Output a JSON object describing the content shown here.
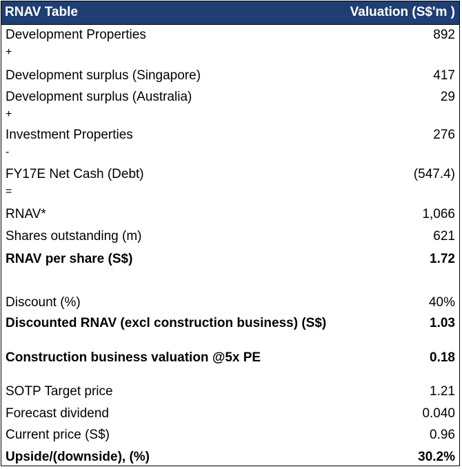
{
  "table": {
    "title": "RNAV Table",
    "value_header": "Valuation (S$'m )",
    "rows": [
      {
        "label": "Development Properties",
        "value": "892",
        "bold": false
      },
      {
        "label": "+",
        "value": "",
        "bold": false,
        "op": true
      },
      {
        "label": "Development surplus (Singapore)",
        "value": "417",
        "bold": false
      },
      {
        "label": "Development surplus (Australia)",
        "value": "29",
        "bold": false
      },
      {
        "label": "+",
        "value": "",
        "bold": false,
        "op": true
      },
      {
        "label": "Investment Properties",
        "value": "276",
        "bold": false
      },
      {
        "label": "-",
        "value": "",
        "bold": false,
        "op": true
      },
      {
        "label": "FY17E Net Cash (Debt)",
        "value": "(547.4)",
        "bold": false
      },
      {
        "label": "=",
        "value": "",
        "bold": false,
        "op": true
      },
      {
        "label": "RNAV*",
        "value": "1,066",
        "bold": false
      },
      {
        "label": "Shares outstanding (m)",
        "value": "621",
        "bold": false
      },
      {
        "label": "RNAV per share (S$)",
        "value": "1.72",
        "bold": true
      },
      {
        "label": "Discount (%)",
        "value": "40%",
        "bold": false
      },
      {
        "label": "Discounted RNAV (excl construction business) (S$)",
        "value": "1.03",
        "bold": true
      },
      {
        "label": "Construction business valuation @5x PE",
        "value": "0.18",
        "bold": true
      },
      {
        "label": "SOTP Target price",
        "value": "1.21",
        "bold": false
      },
      {
        "label": "Forecast dividend",
        "value": "0.040",
        "bold": false
      },
      {
        "label": "Current price (S$)",
        "value": "0.96",
        "bold": false
      },
      {
        "label": "Upside/(downside), (%)",
        "value": "30.2%",
        "bold": true
      }
    ]
  },
  "colors": {
    "header_background": "#1f3f73",
    "header_text": "#ffffff"
  }
}
